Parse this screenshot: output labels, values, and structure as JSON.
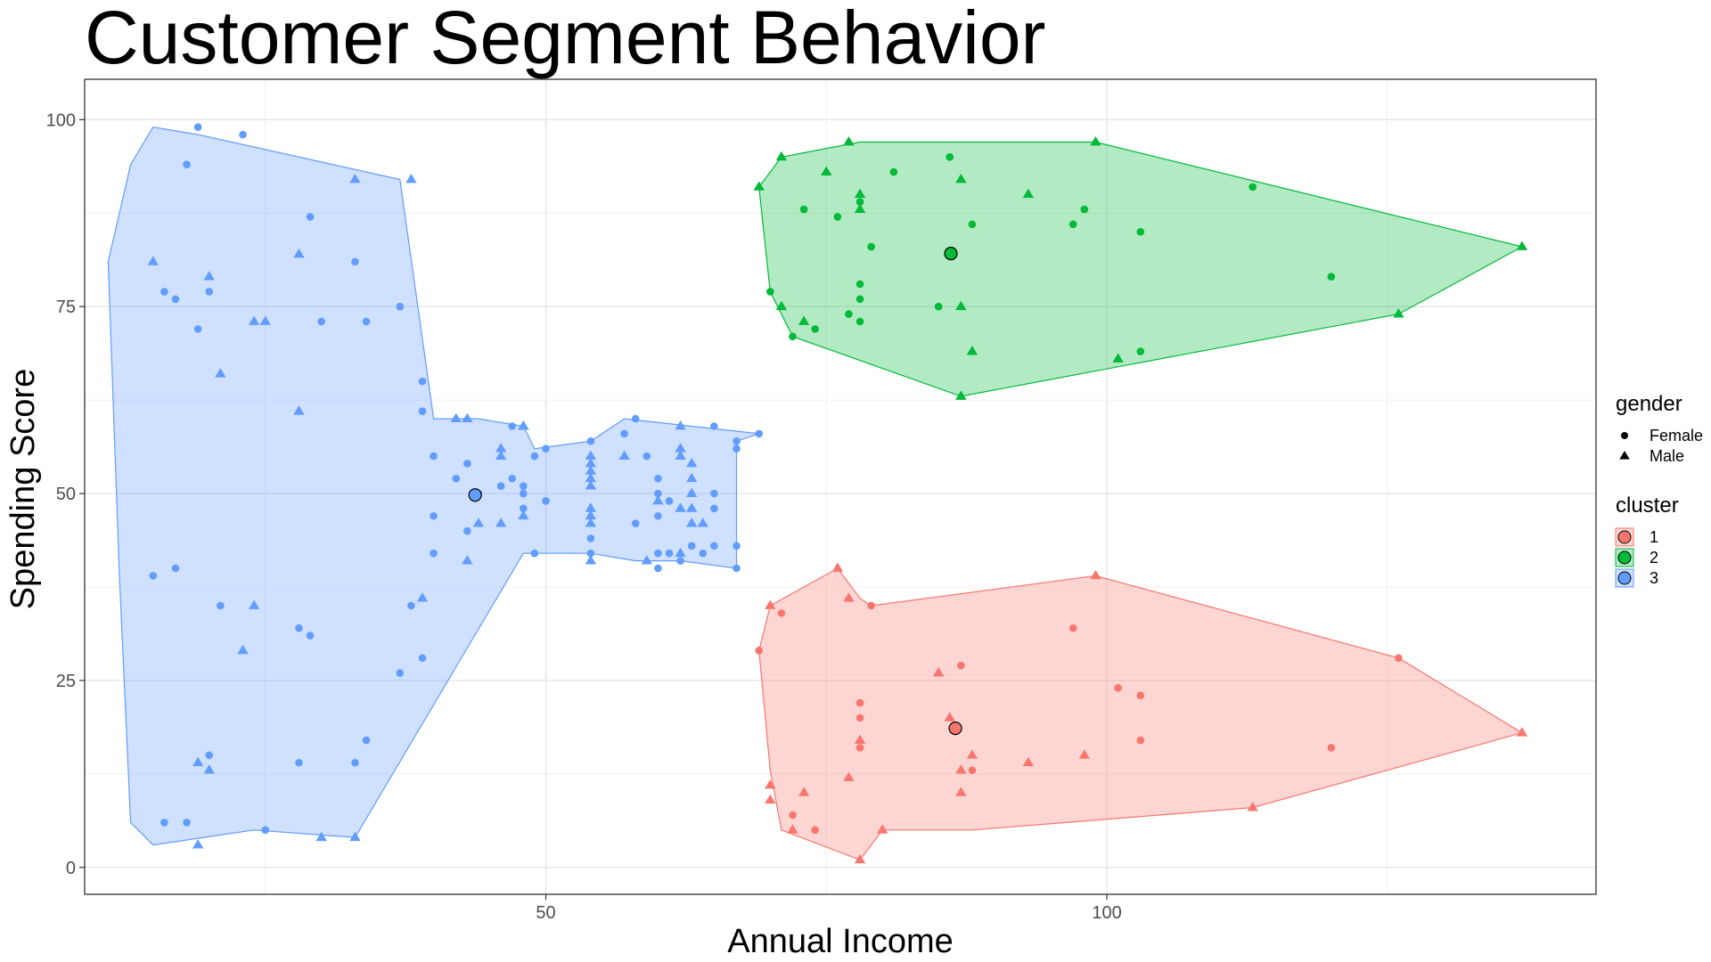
{
  "chart_data": {
    "type": "scatter",
    "title": "Customer Segment Behavior",
    "xlabel": "Annual Income",
    "ylabel": "Spending Score",
    "xlim": [
      8.9,
      143.6
    ],
    "ylim": [
      -3.6,
      105.4
    ],
    "xticks": [
      50,
      100
    ],
    "yticks": [
      0,
      25,
      50,
      75,
      100
    ],
    "grid": true,
    "legend_position": "right",
    "legend": {
      "gender": {
        "title": "gender",
        "entries": [
          "Female",
          "Male"
        ]
      },
      "cluster": {
        "title": "cluster",
        "entries": [
          "1",
          "2",
          "3"
        ]
      }
    },
    "colors": {
      "1": "#f8766d",
      "2": "#00ba38",
      "3": "#619cff"
    },
    "centroids": [
      {
        "cluster": "1",
        "x": 86.5,
        "y": 18.6
      },
      {
        "cluster": "2",
        "x": 86.1,
        "y": 82.1
      },
      {
        "cluster": "3",
        "x": 43.7,
        "y": 49.8
      }
    ],
    "series": [
      {
        "name": "1",
        "hull": [
          [
            78,
            1
          ],
          [
            80,
            5
          ],
          [
            88,
            5
          ],
          [
            113,
            8
          ],
          [
            137,
            18
          ],
          [
            126,
            28
          ],
          [
            99,
            39
          ],
          [
            79,
            35
          ],
          [
            78,
            36
          ],
          [
            76,
            40
          ],
          [
            70,
            35
          ],
          [
            69,
            29
          ],
          [
            70,
            13
          ],
          [
            71,
            5
          ]
        ],
        "points": [
          [
            69,
            29,
            "F"
          ],
          [
            70,
            35,
            "M"
          ],
          [
            71,
            34,
            "F"
          ],
          [
            70,
            11,
            "M"
          ],
          [
            70,
            9,
            "M"
          ],
          [
            72,
            7,
            "F"
          ],
          [
            72,
            5,
            "M"
          ],
          [
            73,
            10,
            "M"
          ],
          [
            74,
            5,
            "F"
          ],
          [
            76,
            40,
            "M"
          ],
          [
            77,
            36,
            "M"
          ],
          [
            77,
            12,
            "M"
          ],
          [
            78,
            1,
            "M"
          ],
          [
            78,
            22,
            "F"
          ],
          [
            78,
            20,
            "F"
          ],
          [
            78,
            17,
            "M"
          ],
          [
            78,
            16,
            "F"
          ],
          [
            79,
            35,
            "F"
          ],
          [
            80,
            5,
            "M"
          ],
          [
            85,
            26,
            "M"
          ],
          [
            86,
            20,
            "M"
          ],
          [
            87,
            27,
            "F"
          ],
          [
            87,
            13,
            "M"
          ],
          [
            87,
            10,
            "M"
          ],
          [
            88,
            15,
            "M"
          ],
          [
            88,
            13,
            "F"
          ],
          [
            93,
            14,
            "M"
          ],
          [
            97,
            32,
            "F"
          ],
          [
            98,
            15,
            "M"
          ],
          [
            99,
            39,
            "M"
          ],
          [
            101,
            24,
            "F"
          ],
          [
            103,
            23,
            "F"
          ],
          [
            103,
            17,
            "F"
          ],
          [
            113,
            8,
            "M"
          ],
          [
            120,
            16,
            "F"
          ],
          [
            126,
            28,
            "F"
          ],
          [
            137,
            18,
            "M"
          ]
        ]
      },
      {
        "name": "2",
        "hull": [
          [
            87,
            63
          ],
          [
            126,
            74
          ],
          [
            137,
            83
          ],
          [
            99,
            97
          ],
          [
            78,
            97
          ],
          [
            71,
            95
          ],
          [
            69,
            91
          ],
          [
            70,
            77
          ],
          [
            72,
            71
          ]
        ],
        "points": [
          [
            69,
            91,
            "M"
          ],
          [
            70,
            77,
            "F"
          ],
          [
            71,
            75,
            "M"
          ],
          [
            71,
            95,
            "M"
          ],
          [
            72,
            71,
            "F"
          ],
          [
            73,
            88,
            "F"
          ],
          [
            73,
            73,
            "M"
          ],
          [
            74,
            72,
            "F"
          ],
          [
            75,
            93,
            "M"
          ],
          [
            76,
            87,
            "F"
          ],
          [
            77,
            97,
            "M"
          ],
          [
            77,
            74,
            "F"
          ],
          [
            78,
            90,
            "M"
          ],
          [
            78,
            89,
            "F"
          ],
          [
            78,
            88,
            "M"
          ],
          [
            78,
            78,
            "F"
          ],
          [
            78,
            76,
            "F"
          ],
          [
            78,
            73,
            "F"
          ],
          [
            79,
            83,
            "F"
          ],
          [
            81,
            93,
            "F"
          ],
          [
            85,
            75,
            "F"
          ],
          [
            86,
            95,
            "F"
          ],
          [
            87,
            92,
            "M"
          ],
          [
            87,
            75,
            "M"
          ],
          [
            87,
            63,
            "M"
          ],
          [
            88,
            86,
            "F"
          ],
          [
            88,
            69,
            "M"
          ],
          [
            93,
            90,
            "M"
          ],
          [
            97,
            86,
            "F"
          ],
          [
            98,
            88,
            "F"
          ],
          [
            99,
            97,
            "M"
          ],
          [
            101,
            68,
            "M"
          ],
          [
            103,
            85,
            "F"
          ],
          [
            103,
            69,
            "F"
          ],
          [
            113,
            91,
            "F"
          ],
          [
            120,
            79,
            "F"
          ],
          [
            126,
            74,
            "M"
          ],
          [
            137,
            83,
            "M"
          ]
        ]
      },
      {
        "name": "3",
        "hull": [
          [
            15,
            3
          ],
          [
            24,
            5
          ],
          [
            33,
            4
          ],
          [
            48,
            42
          ],
          [
            54,
            42
          ],
          [
            58,
            41
          ],
          [
            62,
            41
          ],
          [
            67,
            40
          ],
          [
            67,
            57
          ],
          [
            69,
            58
          ],
          [
            63,
            59
          ],
          [
            57,
            60
          ],
          [
            54,
            57
          ],
          [
            49,
            56
          ],
          [
            48,
            59
          ],
          [
            44,
            60
          ],
          [
            40,
            60
          ],
          [
            37,
            92
          ],
          [
            19,
            98
          ],
          [
            15,
            99
          ],
          [
            13,
            94
          ],
          [
            11,
            81
          ],
          [
            12,
            39
          ],
          [
            13,
            6
          ]
        ],
        "points": [
          [
            15,
            39,
            "F"
          ],
          [
            15,
            81,
            "M"
          ],
          [
            16,
            6,
            "F"
          ],
          [
            16,
            77,
            "F"
          ],
          [
            17,
            40,
            "F"
          ],
          [
            17,
            76,
            "F"
          ],
          [
            18,
            6,
            "F"
          ],
          [
            18,
            94,
            "F"
          ],
          [
            19,
            3,
            "M"
          ],
          [
            19,
            72,
            "F"
          ],
          [
            19,
            14,
            "M"
          ],
          [
            19,
            99,
            "F"
          ],
          [
            20,
            15,
            "F"
          ],
          [
            20,
            77,
            "F"
          ],
          [
            20,
            13,
            "M"
          ],
          [
            20,
            79,
            "M"
          ],
          [
            21,
            35,
            "F"
          ],
          [
            21,
            66,
            "M"
          ],
          [
            23,
            29,
            "M"
          ],
          [
            23,
            98,
            "F"
          ],
          [
            24,
            35,
            "M"
          ],
          [
            24,
            73,
            "M"
          ],
          [
            25,
            5,
            "F"
          ],
          [
            25,
            73,
            "M"
          ],
          [
            28,
            14,
            "F"
          ],
          [
            28,
            82,
            "M"
          ],
          [
            28,
            32,
            "F"
          ],
          [
            28,
            61,
            "M"
          ],
          [
            29,
            31,
            "F"
          ],
          [
            29,
            87,
            "F"
          ],
          [
            30,
            4,
            "M"
          ],
          [
            30,
            73,
            "F"
          ],
          [
            33,
            4,
            "M"
          ],
          [
            33,
            92,
            "M"
          ],
          [
            33,
            14,
            "F"
          ],
          [
            33,
            81,
            "F"
          ],
          [
            34,
            17,
            "F"
          ],
          [
            34,
            73,
            "F"
          ],
          [
            37,
            26,
            "F"
          ],
          [
            37,
            75,
            "F"
          ],
          [
            38,
            35,
            "F"
          ],
          [
            38,
            92,
            "M"
          ],
          [
            39,
            36,
            "M"
          ],
          [
            39,
            61,
            "F"
          ],
          [
            39,
            28,
            "F"
          ],
          [
            39,
            65,
            "F"
          ],
          [
            40,
            55,
            "F"
          ],
          [
            40,
            47,
            "F"
          ],
          [
            40,
            42,
            "F"
          ],
          [
            42,
            52,
            "F"
          ],
          [
            42,
            60,
            "M"
          ],
          [
            43,
            54,
            "F"
          ],
          [
            43,
            60,
            "M"
          ],
          [
            43,
            45,
            "F"
          ],
          [
            43,
            41,
            "M"
          ],
          [
            44,
            50,
            "F"
          ],
          [
            44,
            46,
            "M"
          ],
          [
            46,
            51,
            "F"
          ],
          [
            46,
            46,
            "M"
          ],
          [
            46,
            56,
            "M"
          ],
          [
            46,
            55,
            "M"
          ],
          [
            47,
            52,
            "F"
          ],
          [
            47,
            59,
            "F"
          ],
          [
            48,
            51,
            "F"
          ],
          [
            48,
            59,
            "M"
          ],
          [
            48,
            50,
            "F"
          ],
          [
            48,
            48,
            "F"
          ],
          [
            48,
            59,
            "M"
          ],
          [
            48,
            47,
            "M"
          ],
          [
            49,
            55,
            "F"
          ],
          [
            49,
            42,
            "F"
          ],
          [
            50,
            49,
            "F"
          ],
          [
            50,
            56,
            "F"
          ],
          [
            54,
            47,
            "M"
          ],
          [
            54,
            54,
            "M"
          ],
          [
            54,
            53,
            "M"
          ],
          [
            54,
            48,
            "M"
          ],
          [
            54,
            52,
            "M"
          ],
          [
            54,
            42,
            "F"
          ],
          [
            54,
            51,
            "M"
          ],
          [
            54,
            55,
            "M"
          ],
          [
            54,
            41,
            "M"
          ],
          [
            54,
            44,
            "F"
          ],
          [
            54,
            57,
            "F"
          ],
          [
            54,
            46,
            "M"
          ],
          [
            57,
            58,
            "F"
          ],
          [
            57,
            55,
            "M"
          ],
          [
            58,
            60,
            "F"
          ],
          [
            58,
            46,
            "F"
          ],
          [
            59,
            55,
            "F"
          ],
          [
            59,
            41,
            "M"
          ],
          [
            60,
            49,
            "M"
          ],
          [
            60,
            40,
            "F"
          ],
          [
            60,
            42,
            "F"
          ],
          [
            60,
            52,
            "F"
          ],
          [
            60,
            47,
            "F"
          ],
          [
            60,
            50,
            "F"
          ],
          [
            61,
            42,
            "F"
          ],
          [
            61,
            49,
            "F"
          ],
          [
            62,
            41,
            "F"
          ],
          [
            62,
            48,
            "M"
          ],
          [
            62,
            59,
            "M"
          ],
          [
            62,
            55,
            "M"
          ],
          [
            62,
            56,
            "M"
          ],
          [
            62,
            42,
            "M"
          ],
          [
            63,
            50,
            "M"
          ],
          [
            63,
            46,
            "M"
          ],
          [
            63,
            43,
            "F"
          ],
          [
            63,
            48,
            "M"
          ],
          [
            63,
            52,
            "M"
          ],
          [
            63,
            54,
            "M"
          ],
          [
            64,
            42,
            "F"
          ],
          [
            64,
            46,
            "M"
          ],
          [
            65,
            48,
            "F"
          ],
          [
            65,
            50,
            "F"
          ],
          [
            65,
            43,
            "F"
          ],
          [
            65,
            59,
            "F"
          ],
          [
            67,
            43,
            "F"
          ],
          [
            67,
            57,
            "F"
          ],
          [
            67,
            56,
            "F"
          ],
          [
            67,
            40,
            "F"
          ],
          [
            69,
            58,
            "F"
          ]
        ]
      }
    ]
  }
}
